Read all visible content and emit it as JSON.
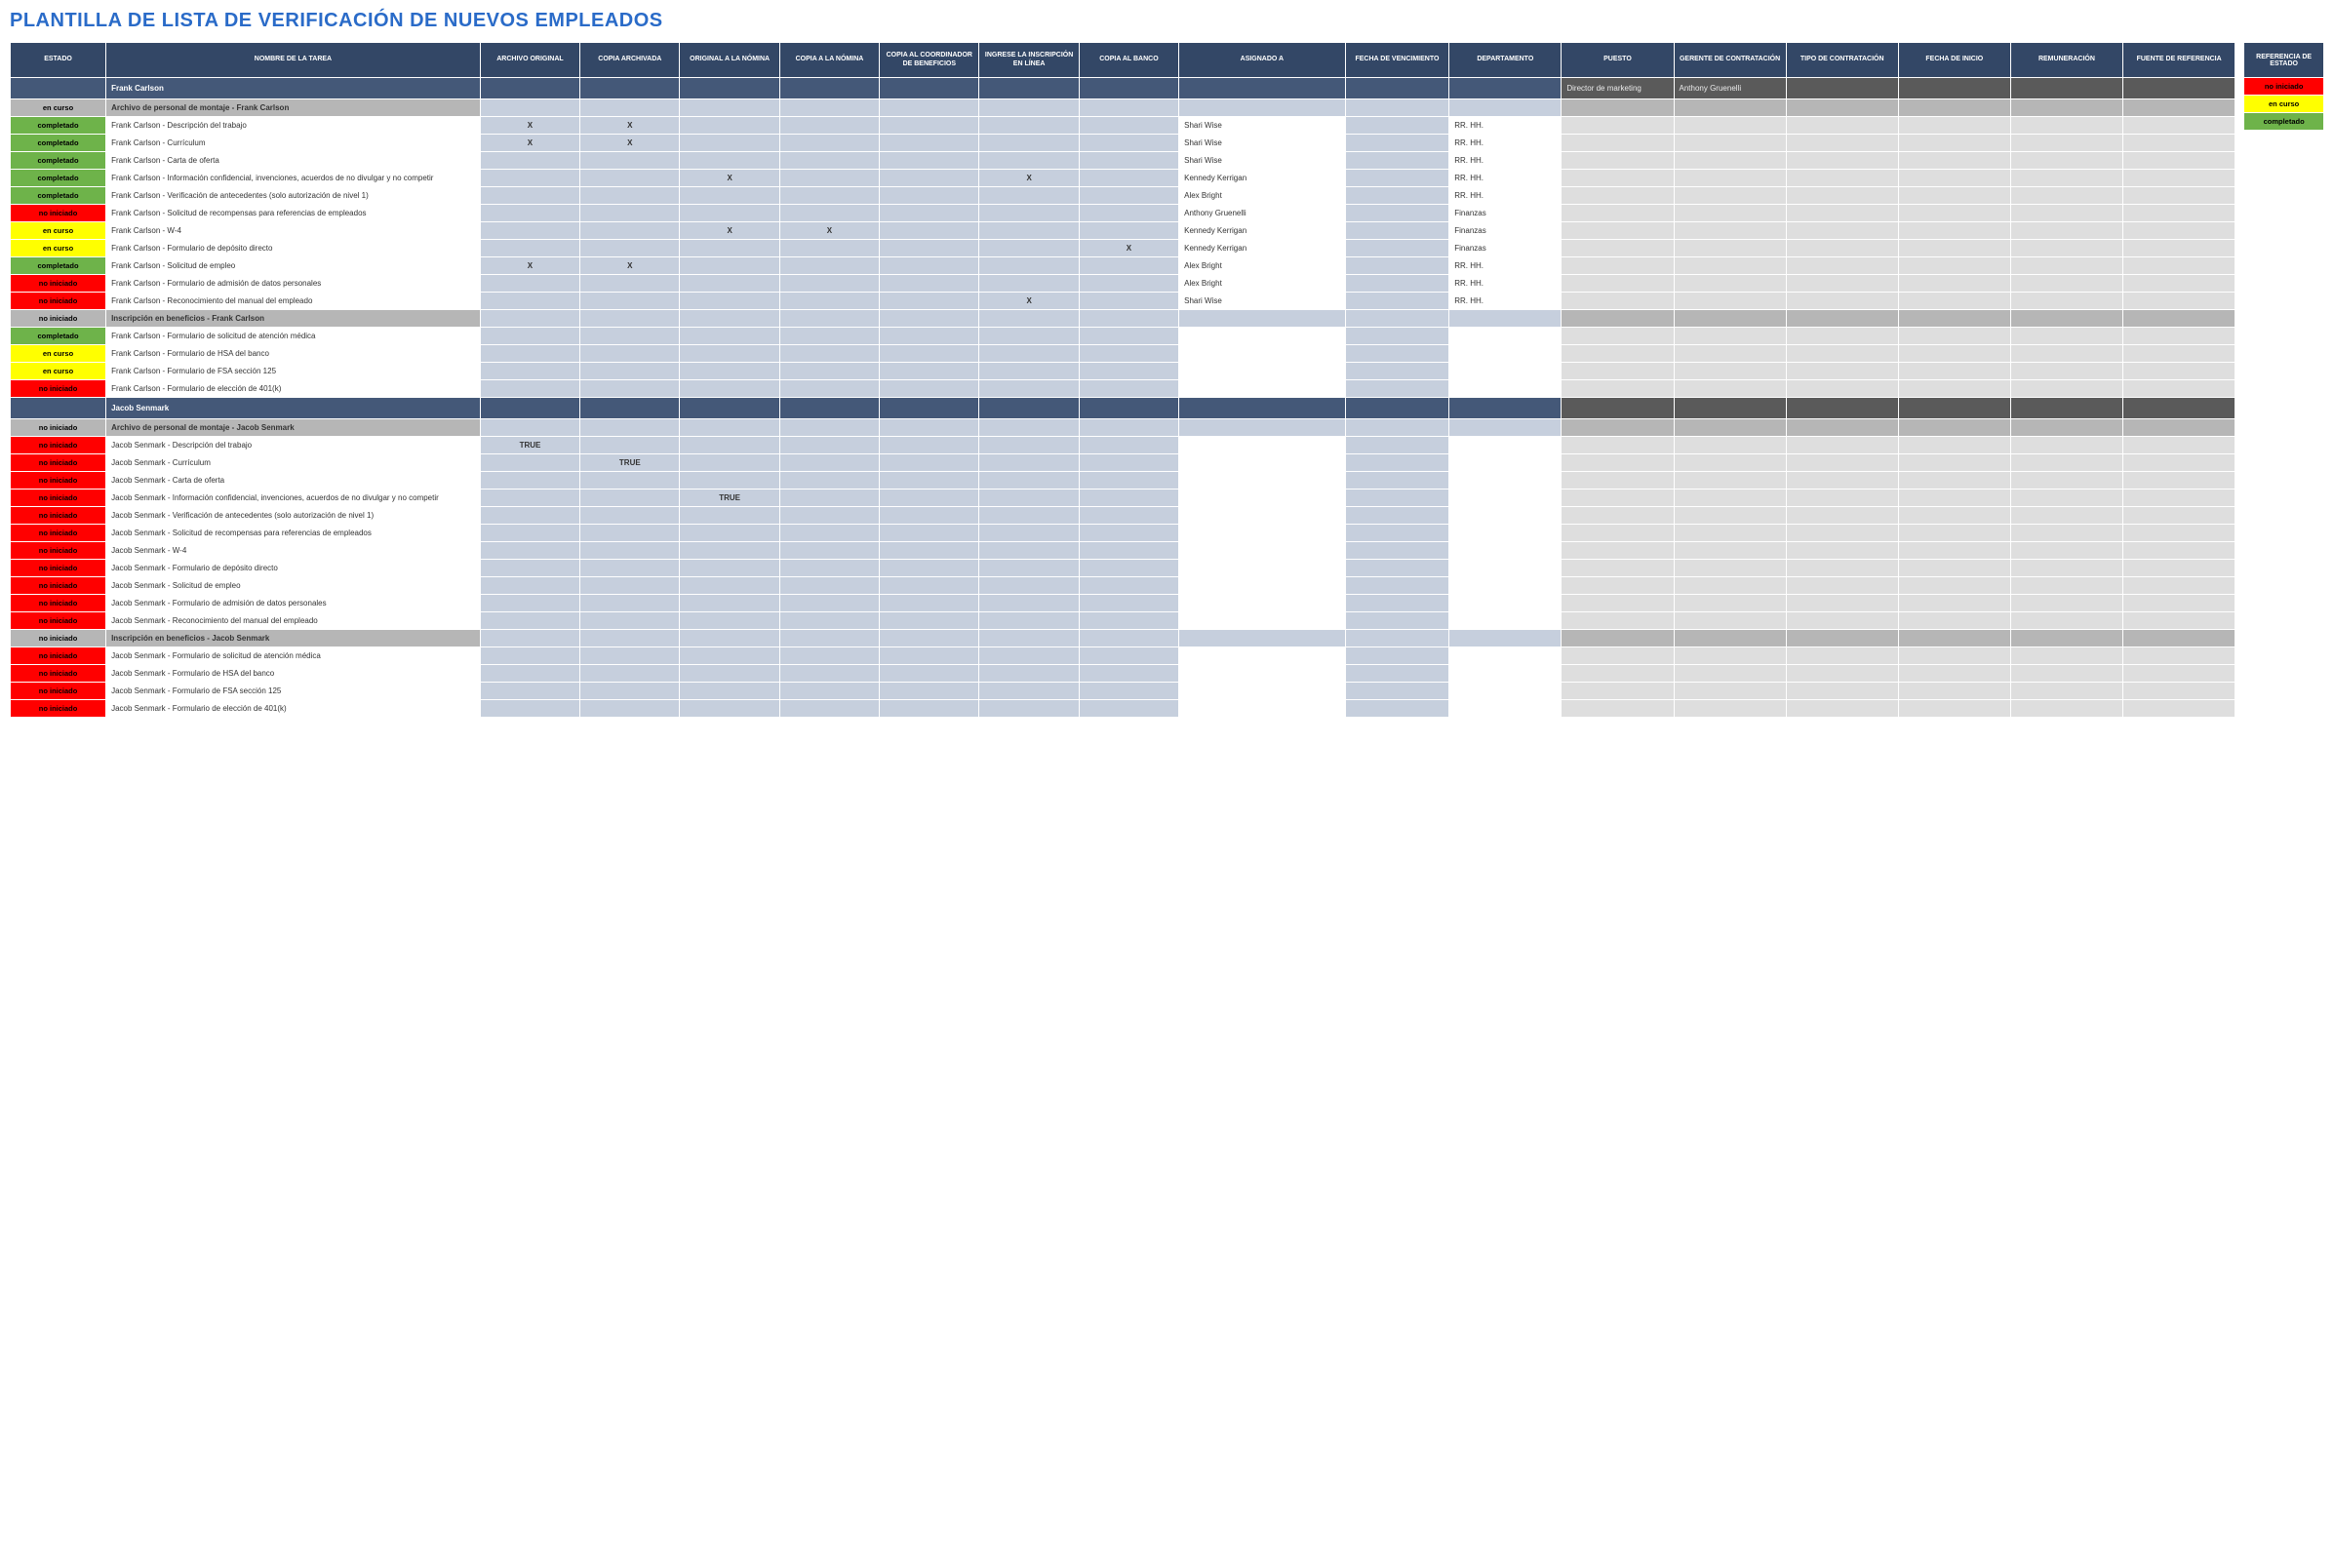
{
  "title": "PLANTILLA DE LISTA DE VERIFICACIÓN DE NUEVOS EMPLEADOS",
  "colors": {
    "header_bg": "#334766",
    "header_fg": "#ffffff",
    "person_bg": "#445878",
    "person_right_bg": "#5a5a5a",
    "section_bg": "#b6b6b6",
    "data_blue_bg": "#c6cfdd",
    "data_gray_bg": "#dedede",
    "data_white_bg": "#ffffff",
    "title_color": "#2a6bc8"
  },
  "status_styles": {
    "no iniciado": {
      "bg": "#ff0000",
      "fg": "#000000"
    },
    "en curso": {
      "bg": "#ffff00",
      "fg": "#000000"
    },
    "completado": {
      "bg": "#6eb34a",
      "fg": "#000000"
    }
  },
  "columns": [
    "ESTADO",
    "NOMBRE DE LA TAREA",
    "ARCHIVO ORIGINAL",
    "COPIA ARCHIVADA",
    "ORIGINAL A LA NÓMINA",
    "COPIA A LA NÓMINA",
    "COPIA AL COORDINADOR DE BENEFICIOS",
    "INGRESE LA INSCRIPCIÓN EN LÍNEA",
    "COPIA AL BANCO",
    "ASIGNADO A",
    "FECHA DE VENCIMIENTO",
    "DEPARTAMENTO",
    "PUESTO",
    "GERENTE DE CONTRATACIÓN",
    "TIPO DE CONTRATACIÓN",
    "FECHA DE INICIO",
    "REMUNERACIÓN",
    "FUENTE DE REFERENCIA"
  ],
  "legend": {
    "header": "REFERENCIA DE ESTADO",
    "items": [
      "no iniciado",
      "en curso",
      "completado"
    ]
  },
  "rows": [
    {
      "type": "person",
      "status": "",
      "task": "Frank Carlson",
      "puesto": "Director de marketing",
      "gerente": "Anthony Gruenelli"
    },
    {
      "type": "section",
      "status": "en curso",
      "task": "Archivo de personal de montaje - Frank Carlson"
    },
    {
      "type": "data",
      "status": "completado",
      "task": "Frank Carlson - Descripción del trabajo",
      "c1": "X",
      "c2": "X",
      "assigned": "Shari Wise",
      "dept": "RR. HH."
    },
    {
      "type": "data",
      "status": "completado",
      "task": "Frank Carlson - Currículum",
      "c1": "X",
      "c2": "X",
      "assigned": "Shari Wise",
      "dept": "RR. HH."
    },
    {
      "type": "data",
      "status": "completado",
      "task": "Frank Carlson - Carta de oferta",
      "assigned": "Shari Wise",
      "dept": "RR. HH."
    },
    {
      "type": "data",
      "status": "completado",
      "task": "Frank Carlson - Información confidencial, invenciones, acuerdos de no divulgar y no competir",
      "c3": "X",
      "c6": "X",
      "assigned": "Kennedy Kerrigan",
      "dept": "RR. HH."
    },
    {
      "type": "data",
      "status": "completado",
      "task": "Frank Carlson - Verificación de antecedentes (solo autorización de nivel 1)",
      "assigned": "Alex Bright",
      "dept": "RR. HH."
    },
    {
      "type": "data",
      "status": "no iniciado",
      "task": "Frank Carlson - Solicitud de recompensas para referencias de empleados",
      "assigned": "Anthony Gruenelli",
      "dept": "Finanzas"
    },
    {
      "type": "data",
      "status": "en curso",
      "task": "Frank Carlson - W-4",
      "c3": "X",
      "c4": "X",
      "assigned": "Kennedy Kerrigan",
      "dept": "Finanzas"
    },
    {
      "type": "data",
      "status": "en curso",
      "task": "Frank Carlson - Formulario de depósito directo",
      "c7": "X",
      "assigned": "Kennedy Kerrigan",
      "dept": "Finanzas"
    },
    {
      "type": "data",
      "status": "completado",
      "task": "Frank Carlson - Solicitud de empleo",
      "c1": "X",
      "c2": "X",
      "assigned": "Alex Bright",
      "dept": "RR. HH."
    },
    {
      "type": "data",
      "status": "no iniciado",
      "task": "Frank Carlson - Formulario de admisión de datos personales",
      "assigned": "Alex Bright",
      "dept": "RR. HH."
    },
    {
      "type": "data",
      "status": "no iniciado",
      "task": "Frank Carlson - Reconocimiento del manual del empleado",
      "c6": "X",
      "assigned": "Shari Wise",
      "dept": "RR. HH."
    },
    {
      "type": "section",
      "status": "no iniciado",
      "task": "Inscripción en beneficios - Frank Carlson"
    },
    {
      "type": "data",
      "status": "completado",
      "task": "Frank Carlson - Formulario de solicitud de atención médica"
    },
    {
      "type": "data",
      "status": "en curso",
      "task": "Frank Carlson - Formulario de HSA del banco"
    },
    {
      "type": "data",
      "status": "en curso",
      "task": "Frank Carlson - Formulario de FSA sección 125"
    },
    {
      "type": "data",
      "status": "no iniciado",
      "task": "Frank Carlson - Formulario de elección de 401(k)"
    },
    {
      "type": "person",
      "status": "",
      "task": "Jacob Senmark"
    },
    {
      "type": "section",
      "status": "no iniciado",
      "task": "Archivo de personal de montaje - Jacob Senmark"
    },
    {
      "type": "data",
      "status": "no iniciado",
      "task": "Jacob Senmark - Descripción del trabajo",
      "c1": "TRUE"
    },
    {
      "type": "data",
      "status": "no iniciado",
      "task": "Jacob Senmark - Currículum",
      "c2": "TRUE"
    },
    {
      "type": "data",
      "status": "no iniciado",
      "task": "Jacob Senmark - Carta de oferta"
    },
    {
      "type": "data",
      "status": "no iniciado",
      "task": "Jacob Senmark - Información confidencial, invenciones, acuerdos de no divulgar y no competir",
      "c3": "TRUE"
    },
    {
      "type": "data",
      "status": "no iniciado",
      "task": "Jacob Senmark - Verificación de antecedentes (solo autorización de nivel 1)"
    },
    {
      "type": "data",
      "status": "no iniciado",
      "task": "Jacob Senmark - Solicitud de recompensas para referencias de empleados"
    },
    {
      "type": "data",
      "status": "no iniciado",
      "task": "Jacob Senmark - W-4"
    },
    {
      "type": "data",
      "status": "no iniciado",
      "task": "Jacob Senmark - Formulario de depósito directo"
    },
    {
      "type": "data",
      "status": "no iniciado",
      "task": "Jacob Senmark - Solicitud de empleo"
    },
    {
      "type": "data",
      "status": "no iniciado",
      "task": "Jacob Senmark - Formulario de admisión de datos personales"
    },
    {
      "type": "data",
      "status": "no iniciado",
      "task": "Jacob Senmark - Reconocimiento del manual del empleado"
    },
    {
      "type": "section",
      "status": "no iniciado",
      "task": "Inscripción en beneficios - Jacob Senmark"
    },
    {
      "type": "data",
      "status": "no iniciado",
      "task": "Jacob Senmark - Formulario de solicitud de atención médica"
    },
    {
      "type": "data",
      "status": "no iniciado",
      "task": "Jacob Senmark - Formulario de HSA del banco"
    },
    {
      "type": "data",
      "status": "no iniciado",
      "task": "Jacob Senmark - Formulario de FSA sección 125"
    },
    {
      "type": "data",
      "status": "no iniciado",
      "task": "Jacob Senmark - Formulario de elección de 401(k)"
    }
  ]
}
